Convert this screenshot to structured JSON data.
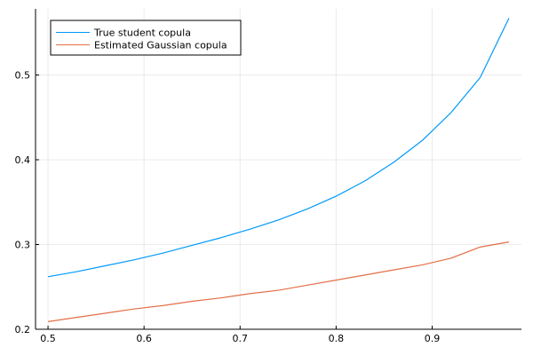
{
  "chart_data": {
    "type": "line",
    "title": "",
    "xlabel": "",
    "ylabel": "",
    "xlim": [
      0.487,
      0.993
    ],
    "ylim": [
      0.2,
      0.578
    ],
    "grid": true,
    "legend_position": "top-left",
    "x_ticks": [
      0.5,
      0.6,
      0.7,
      0.8,
      0.9
    ],
    "x_tick_labels": [
      "0.5",
      "0.6",
      "0.7",
      "0.8",
      "0.9"
    ],
    "y_ticks": [
      0.2,
      0.3,
      0.4,
      0.5
    ],
    "y_tick_labels": [
      "0.2",
      "0.3",
      "0.4",
      "0.5"
    ],
    "x": [
      0.5,
      0.53,
      0.56,
      0.59,
      0.62,
      0.65,
      0.68,
      0.71,
      0.74,
      0.77,
      0.8,
      0.83,
      0.86,
      0.89,
      0.92,
      0.95,
      0.98
    ],
    "series": [
      {
        "name": "True student copula",
        "color": "#009af9",
        "values": [
          0.262,
          0.268,
          0.275,
          0.282,
          0.29,
          0.299,
          0.308,
          0.318,
          0.329,
          0.342,
          0.357,
          0.375,
          0.397,
          0.423,
          0.456,
          0.497,
          0.567
        ]
      },
      {
        "name": "Estimated Gaussian copula",
        "color": "#e26f46",
        "values": [
          0.209,
          0.214,
          0.219,
          0.224,
          0.228,
          0.233,
          0.237,
          0.242,
          0.246,
          0.252,
          0.258,
          0.264,
          0.27,
          0.276,
          0.284,
          0.297,
          0.303
        ]
      }
    ]
  }
}
